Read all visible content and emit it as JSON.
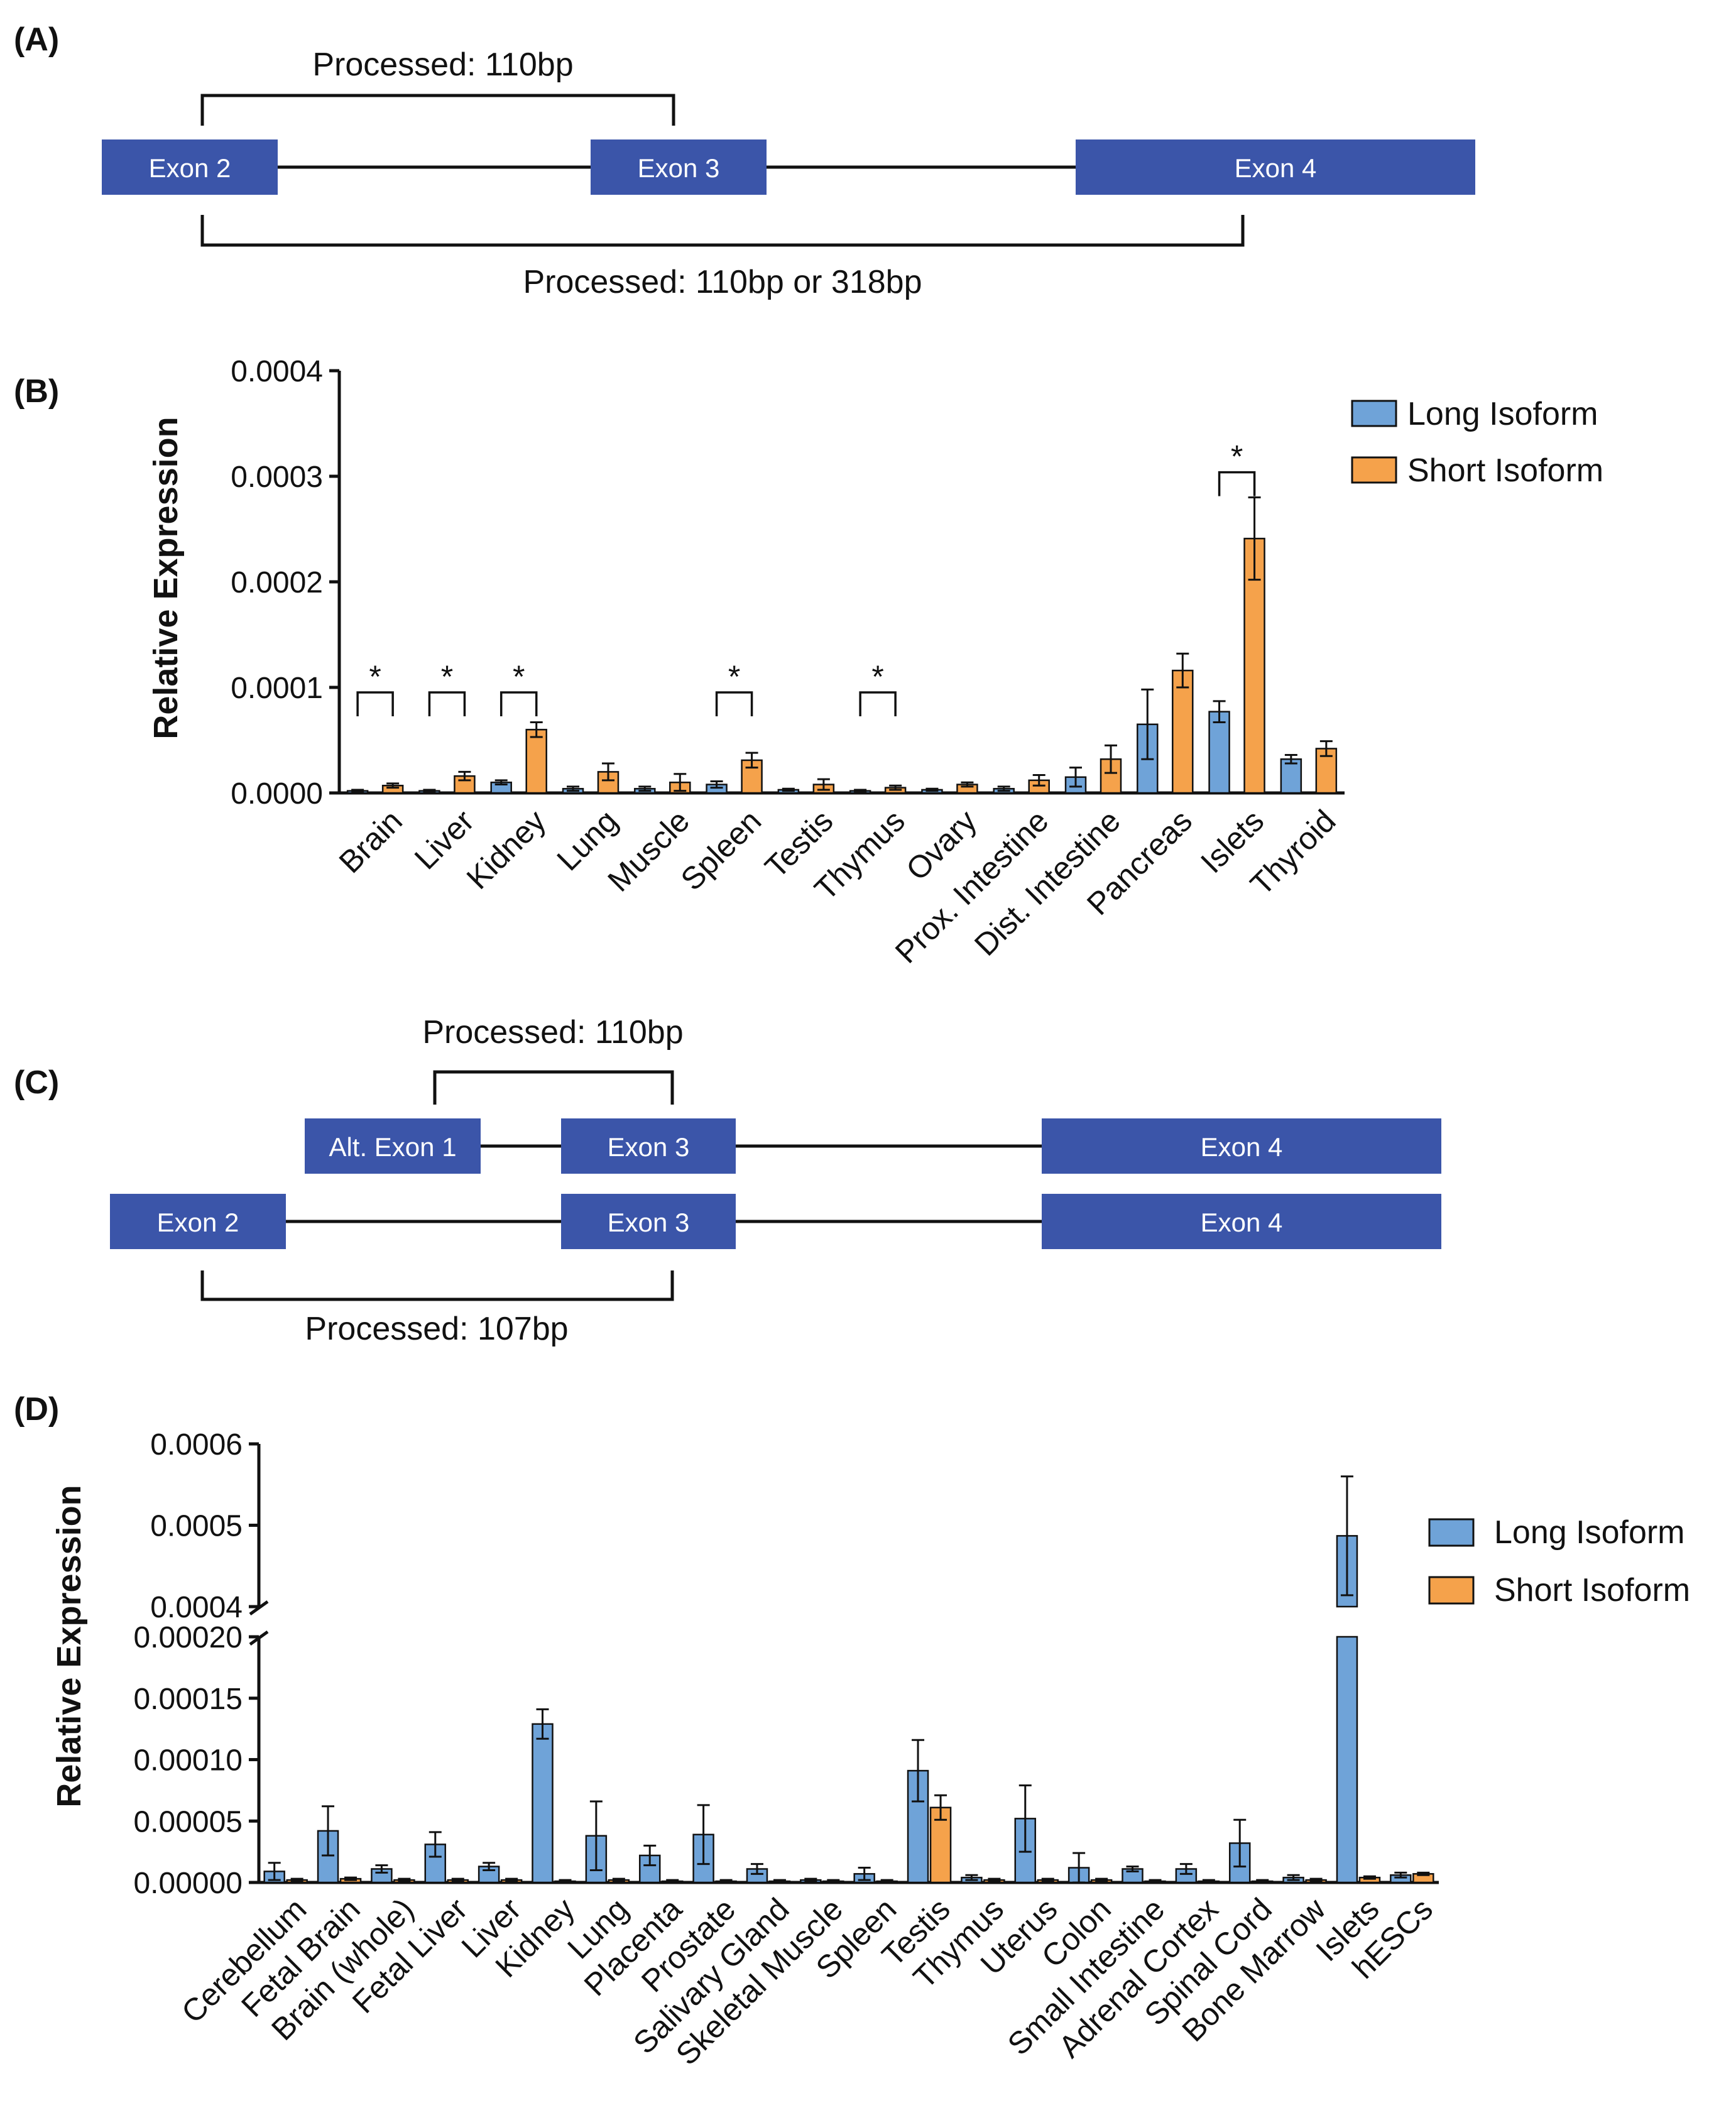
{
  "panels": {
    "a": {
      "label": "(A)",
      "exons": [
        "Exon 2",
        "Exon 3",
        "Exon 4"
      ],
      "top_bracket": "Processed: 110bp",
      "bottom_bracket": "Processed: 110bp or 318bp"
    },
    "c": {
      "label": "(C)",
      "row1_exons": [
        "Alt. Exon 1",
        "Exon 3",
        "Exon 4"
      ],
      "row2_exons": [
        "Exon 2",
        "Exon 3",
        "Exon 4"
      ],
      "top_bracket": "Processed: 110bp",
      "bottom_bracket": "Processed: 107bp"
    }
  },
  "colors": {
    "exon": "#3b55a9",
    "long": "#6fa3d8",
    "short": "#f5a24b"
  },
  "chart_data": [
    {
      "panel_label": "(B)",
      "type": "bar",
      "ylabel": "Relative Expression",
      "ylim": [
        0,
        0.0004
      ],
      "yticks": [
        "0.0000",
        "0.0001",
        "0.0002",
        "0.0003",
        "0.0004"
      ],
      "categories": [
        "Brain",
        "Liver",
        "Kidney",
        "Lung",
        "Muscle",
        "Spleen",
        "Testis",
        "Thymus",
        "Ovary",
        "Prox. Intestine",
        "Dist. Intestine",
        "Pancreas",
        "Islets",
        "Thyroid"
      ],
      "series": [
        {
          "name": "Long Isoform",
          "values": [
            2e-06,
            2e-06,
            1e-05,
            4e-06,
            4e-06,
            8e-06,
            3e-06,
            2e-06,
            3e-06,
            4e-06,
            1.5e-05,
            6.5e-05,
            7.7e-05,
            3.2e-05
          ],
          "errors": [
            1e-06,
            1e-06,
            2e-06,
            2e-06,
            2e-06,
            3e-06,
            1e-06,
            1e-06,
            1e-06,
            2e-06,
            9e-06,
            3.3e-05,
            1e-05,
            4e-06
          ]
        },
        {
          "name": "Short Isoform",
          "values": [
            7e-06,
            1.6e-05,
            6e-05,
            2e-05,
            1e-05,
            3.1e-05,
            8e-06,
            5e-06,
            8e-06,
            1.2e-05,
            3.2e-05,
            0.000116,
            0.000241,
            4.2e-05
          ]
        }
      ],
      "short_errors": [
        2e-06,
        4e-06,
        7e-06,
        8e-06,
        8e-06,
        7e-06,
        5e-06,
        2e-06,
        2e-06,
        5e-06,
        1.3e-05,
        1.6e-05,
        3.9e-05,
        7e-06
      ],
      "significance": {
        "marker": "*",
        "categories": [
          "Brain",
          "Liver",
          "Kidney",
          "Spleen",
          "Thymus",
          "Islets"
        ]
      },
      "legend": {
        "position": "top-right"
      }
    },
    {
      "panel_label": "(D)",
      "type": "bar",
      "ylabel": "Relative Expression",
      "ylim_lower": [
        0,
        0.0002
      ],
      "ylim_upper": [
        0.0004,
        0.0006
      ],
      "yticks_lower": [
        "0.00000",
        "0.00005",
        "0.00010",
        "0.00015",
        "0.00020"
      ],
      "yticks_upper": [
        "0.0004",
        "0.0005",
        "0.0006"
      ],
      "categories": [
        "Cerebellum",
        "Fetal Brain",
        "Brain (whole)",
        "Fetal Liver",
        "Liver",
        "Kidney",
        "Lung",
        "Placenta",
        "Prostate",
        "Salivary Gland",
        "Skeletal Muscle",
        "Spleen",
        "Testis",
        "Thymus",
        "Uterus",
        "Colon",
        "Small Intestine",
        "Adrenal Cortex",
        "Spinal Cord",
        "Bone Marrow",
        "Islets",
        "hESCs"
      ],
      "series": [
        {
          "name": "Long Isoform",
          "values": [
            9e-06,
            4.2e-05,
            1.1e-05,
            3.1e-05,
            1.3e-05,
            0.000129,
            3.8e-05,
            2.2e-05,
            3.9e-05,
            1.1e-05,
            2e-06,
            7e-06,
            9.1e-05,
            4e-06,
            5.2e-05,
            1.2e-05,
            1.1e-05,
            1.1e-05,
            3.2e-05,
            4e-06,
            0.000487,
            6e-06
          ]
        },
        {
          "name": "Short Isoform",
          "values": [
            2e-06,
            3e-06,
            2e-06,
            2e-06,
            2e-06,
            1e-06,
            2e-06,
            1e-06,
            1e-06,
            1e-06,
            1e-06,
            1e-06,
            6.1e-05,
            2e-06,
            2e-06,
            2e-06,
            1e-06,
            1e-06,
            1e-06,
            2e-06,
            4e-06,
            7e-06
          ]
        }
      ],
      "long_errors": [
        7e-06,
        2e-05,
        3e-06,
        1e-05,
        3e-06,
        1.2e-05,
        2.8e-05,
        8e-06,
        2.4e-05,
        4e-06,
        1e-06,
        5e-06,
        2.5e-05,
        2e-06,
        2.7e-05,
        1.2e-05,
        2e-06,
        4e-06,
        1.9e-05,
        2e-06,
        7.3e-05,
        2e-06
      ],
      "short_errors": [
        1e-06,
        1e-06,
        1e-06,
        1e-06,
        1e-06,
        1e-06,
        1e-06,
        1e-06,
        1e-06,
        1e-06,
        1e-06,
        1e-06,
        1e-05,
        1e-06,
        1e-06,
        1e-06,
        1e-06,
        1e-06,
        1e-06,
        1e-06,
        1e-06,
        1e-06
      ],
      "legend": {
        "position": "top-right"
      }
    }
  ]
}
